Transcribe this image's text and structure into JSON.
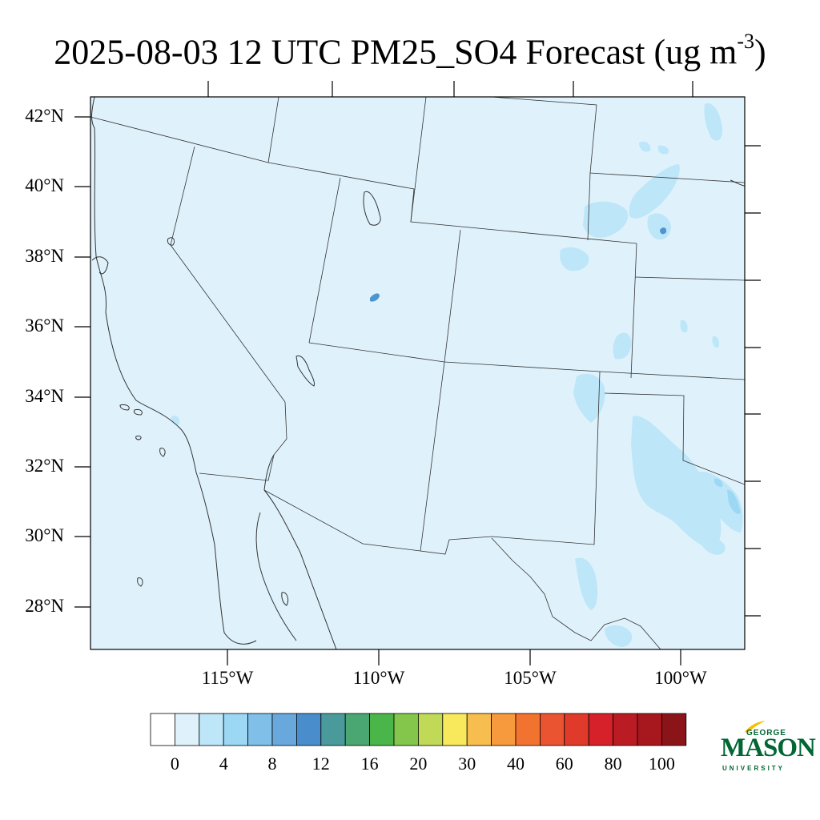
{
  "title": {
    "main": "2025-08-03 12 UTC PM25_SO4 Forecast (ug m",
    "exponent": "-3",
    "close": ")"
  },
  "map": {
    "fill_color": "#dff2fc",
    "light_blue": "#bde6f8",
    "mid_blue": "#9cd7f4",
    "darker_blue": "#4e95cf",
    "latitude_labels": [
      "42°N",
      "40°N",
      "38°N",
      "36°N",
      "34°N",
      "32°N",
      "30°N",
      "28°N"
    ],
    "longitude_labels": [
      "115°W",
      "110°W",
      "105°W",
      "100°W"
    ]
  },
  "colorbar": {
    "colors": [
      "#ffffff",
      "#dff2fc",
      "#bde6f8",
      "#9cd7f4",
      "#7fbfe8",
      "#68a8dc",
      "#4a8dcc",
      "#4a9a9c",
      "#4aa772",
      "#4ab549",
      "#84c54c",
      "#c0d957",
      "#f8e95c",
      "#f8bd4f",
      "#f69a3d",
      "#f27330",
      "#ea5430",
      "#e03b2a",
      "#d6202a",
      "#bb1c24",
      "#a6181d",
      "#8b1419"
    ],
    "labels": [
      "0",
      "4",
      "8",
      "12",
      "16",
      "20",
      "30",
      "40",
      "60",
      "80",
      "100"
    ]
  },
  "logo": {
    "top": "GEORGE",
    "main": "MASON",
    "bottom": "UNIVERSITY"
  }
}
